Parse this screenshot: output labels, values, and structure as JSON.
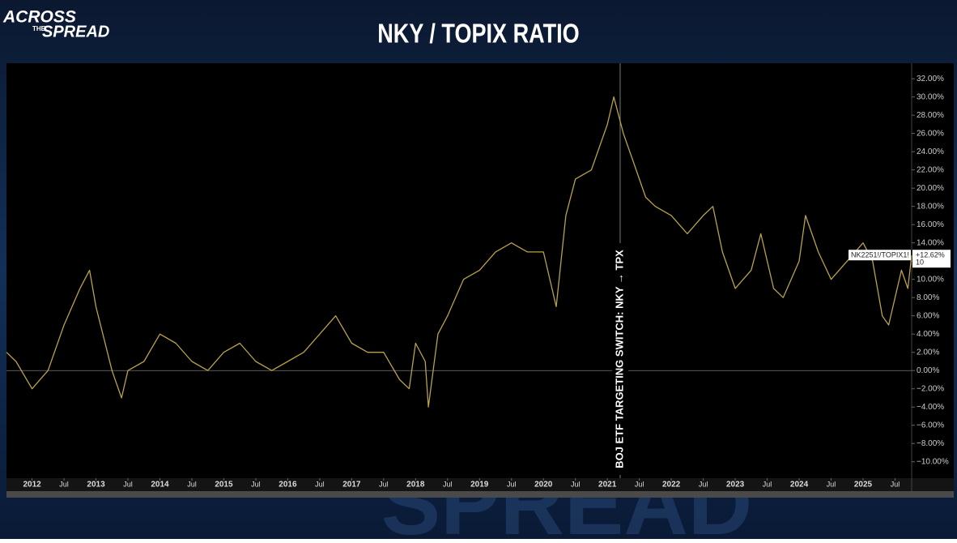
{
  "logo": {
    "line1": "ACROSS",
    "line2": "THE",
    "line3": "SPREAD"
  },
  "watermark": "SPREAD",
  "chart_data": {
    "type": "line",
    "title": "NKY / TOPIX RATIO",
    "annotation": {
      "text": "BOJ ETF TARGETING SWITCH: NKY → TPX",
      "x": 2021.2
    },
    "x": [
      2011.6,
      2011.75,
      2012.0,
      2012.25,
      2012.5,
      2012.75,
      2012.9,
      2013.0,
      2013.25,
      2013.4,
      2013.5,
      2013.75,
      2014.0,
      2014.25,
      2014.5,
      2014.75,
      2015.0,
      2015.25,
      2015.5,
      2015.75,
      2016.0,
      2016.25,
      2016.5,
      2016.75,
      2017.0,
      2017.25,
      2017.5,
      2017.75,
      2017.9,
      2018.0,
      2018.15,
      2018.2,
      2018.35,
      2018.5,
      2018.75,
      2019.0,
      2019.25,
      2019.5,
      2019.75,
      2020.0,
      2020.2,
      2020.35,
      2020.5,
      2020.75,
      2021.0,
      2021.1,
      2021.25,
      2021.4,
      2021.6,
      2021.75,
      2022.0,
      2022.25,
      2022.5,
      2022.65,
      2022.8,
      2023.0,
      2023.25,
      2023.4,
      2023.6,
      2023.75,
      2024.0,
      2024.1,
      2024.3,
      2024.5,
      2024.75,
      2025.0,
      2025.15,
      2025.3,
      2025.4,
      2025.5,
      2025.6,
      2025.7,
      2025.76
    ],
    "series": [
      {
        "name": "NK2251!/TOPIX1!",
        "color": "#b8a24a",
        "values": [
          2,
          1,
          -2,
          0,
          5,
          9,
          11,
          7,
          0,
          -3,
          0,
          1,
          4,
          3,
          1,
          0,
          2,
          3,
          1,
          0,
          1,
          2,
          4,
          6,
          3,
          2,
          2,
          -1,
          -2,
          3,
          1,
          -4,
          4,
          6,
          10,
          11,
          13,
          14,
          13,
          13,
          7,
          17,
          21,
          22,
          27,
          30,
          26,
          23,
          19,
          18,
          17,
          15,
          17,
          18,
          13,
          9,
          11,
          15,
          9,
          8,
          12,
          17,
          13,
          10,
          12,
          14,
          12,
          6,
          5,
          8,
          11,
          9,
          12.62
        ],
        "last_value_label": "+12.62%",
        "countdown": "10"
      }
    ],
    "xlim": [
      2011.6,
      2025.76
    ],
    "xticks": [
      2012,
      {
        "value": 2012.5,
        "label": "Jul"
      },
      2013,
      {
        "value": 2013.5,
        "label": "Jul"
      },
      2014,
      {
        "value": 2014.5,
        "label": "Jul"
      },
      2015,
      {
        "value": 2015.5,
        "label": "Jul"
      },
      2016,
      {
        "value": 2016.5,
        "label": "Jul"
      },
      2017,
      {
        "value": 2017.5,
        "label": "Jul"
      },
      2018,
      {
        "value": 2018.5,
        "label": "Jul"
      },
      2019,
      {
        "value": 2019.5,
        "label": "Jul"
      },
      2020,
      {
        "value": 2020.5,
        "label": "Jul"
      },
      2021,
      {
        "value": 2021.5,
        "label": "Jul"
      },
      2022,
      {
        "value": 2022.5,
        "label": "Jul"
      },
      2023,
      {
        "value": 2023.5,
        "label": "Jul"
      },
      2024,
      {
        "value": 2024.5,
        "label": "Jul"
      },
      2025,
      {
        "value": 2025.5,
        "label": "Jul"
      }
    ],
    "ylim": [
      -11.8,
      33.7
    ],
    "yticks": [
      {
        "value": 32,
        "label": "32.00%"
      },
      {
        "value": 30,
        "label": "30.00%"
      },
      {
        "value": 28,
        "label": "28.00%"
      },
      {
        "value": 26,
        "label": "26.00%"
      },
      {
        "value": 24,
        "label": "24.00%"
      },
      {
        "value": 22,
        "label": "22.00%"
      },
      {
        "value": 20,
        "label": "20.00%"
      },
      {
        "value": 18,
        "label": "18.00%"
      },
      {
        "value": 16,
        "label": "16.00%"
      },
      {
        "value": 14,
        "label": "14.00%"
      },
      {
        "value": 12,
        "label": "12.00%"
      },
      {
        "value": 10,
        "label": "10.00%"
      },
      {
        "value": 8,
        "label": "8.00%"
      },
      {
        "value": 6,
        "label": "6.00%"
      },
      {
        "value": 4,
        "label": "4.00%"
      },
      {
        "value": 2,
        "label": "2.00%"
      },
      {
        "value": 0,
        "label": "0.00%"
      },
      {
        "value": -2,
        "label": "−2.00%"
      },
      {
        "value": -4,
        "label": "−4.00%"
      },
      {
        "value": -6,
        "label": "−6.00%"
      },
      {
        "value": -8,
        "label": "−8.00%"
      },
      {
        "value": -10,
        "label": "−10.00%"
      }
    ],
    "grid": false
  }
}
